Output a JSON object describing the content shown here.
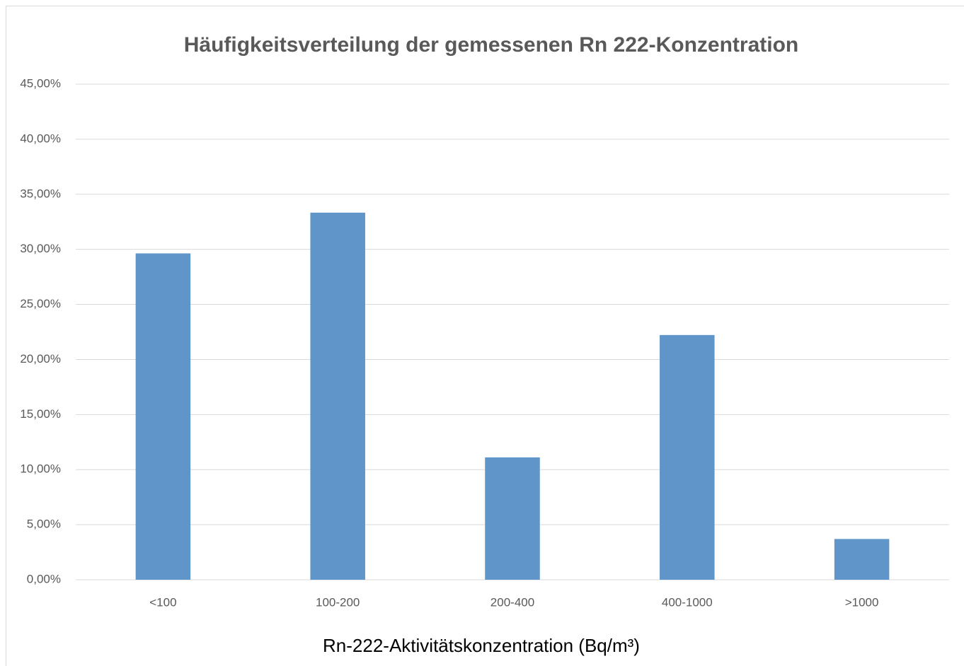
{
  "chart_data": {
    "type": "bar",
    "title": "Häufigkeitsverteilung der gemessenen Rn 222-Konzentration",
    "x_label": "Rn-222-Aktivitätskonzentration (Bq/m³)",
    "categories": [
      "<100",
      "100-200",
      "200-400",
      "400-1000",
      ">1000"
    ],
    "values": [
      29.63,
      33.33,
      11.11,
      22.22,
      3.7
    ],
    "color": "#5f95c9",
    "ylim": [
      0,
      45
    ],
    "yticks": [
      {
        "value": 0,
        "label": "0,00%"
      },
      {
        "value": 5,
        "label": "5,00%"
      },
      {
        "value": 10,
        "label": "10,00%"
      },
      {
        "value": 15,
        "label": "15,00%"
      },
      {
        "value": 20,
        "label": "20,00%"
      },
      {
        "value": 25,
        "label": "25,00%"
      },
      {
        "value": 30,
        "label": "30,00%"
      },
      {
        "value": 35,
        "label": "35,00%"
      },
      {
        "value": 40,
        "label": "40,00%"
      },
      {
        "value": 45,
        "label": "45,00%"
      }
    ],
    "grid": true
  }
}
